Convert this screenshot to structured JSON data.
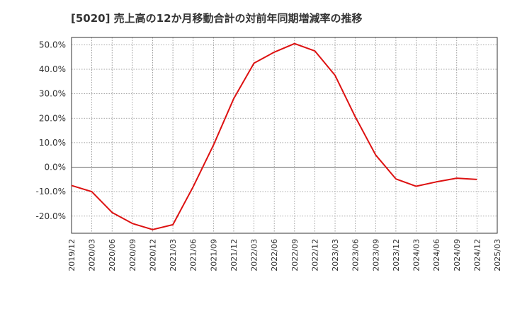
{
  "chart_data": {
    "type": "line",
    "title": "[5020]  売上高の12か月移動合計の対前年同期増減率の推移",
    "xlabel": "",
    "ylabel": "",
    "ylim": [
      -27,
      53
    ],
    "y_ticks": [
      "50.0%",
      "40.0%",
      "30.0%",
      "20.0%",
      "10.0%",
      "0.0%",
      "-10.0%",
      "-20.0%"
    ],
    "y_tick_values": [
      50,
      40,
      30,
      20,
      10,
      0,
      -10,
      -20
    ],
    "x_ticks": [
      "2019/12",
      "2020/03",
      "2020/06",
      "2020/09",
      "2020/12",
      "2021/03",
      "2021/06",
      "2021/09",
      "2021/12",
      "2022/03",
      "2022/06",
      "2022/09",
      "2022/12",
      "2023/03",
      "2023/06",
      "2023/09",
      "2023/12",
      "2024/03",
      "2024/06",
      "2024/09",
      "2024/12",
      "2025/03"
    ],
    "grid": true,
    "legend": "none",
    "series": [
      {
        "color": "#dd1111",
        "x": [
          "2019/12",
          "2020/03",
          "2020/06",
          "2020/09",
          "2020/12",
          "2021/03",
          "2021/06",
          "2021/09",
          "2021/12",
          "2022/03",
          "2022/06",
          "2022/09",
          "2022/12",
          "2023/03",
          "2023/06",
          "2023/09",
          "2023/12",
          "2024/03",
          "2024/06",
          "2024/09",
          "2024/12"
        ],
        "values": [
          -7.5,
          -10.0,
          -18.5,
          -23.0,
          -25.5,
          -23.5,
          -8.0,
          9.0,
          28.0,
          42.5,
          47.0,
          50.5,
          47.5,
          37.5,
          20.5,
          5.0,
          -4.8,
          -7.8,
          -6.0,
          -4.5,
          -5.0
        ]
      }
    ]
  }
}
